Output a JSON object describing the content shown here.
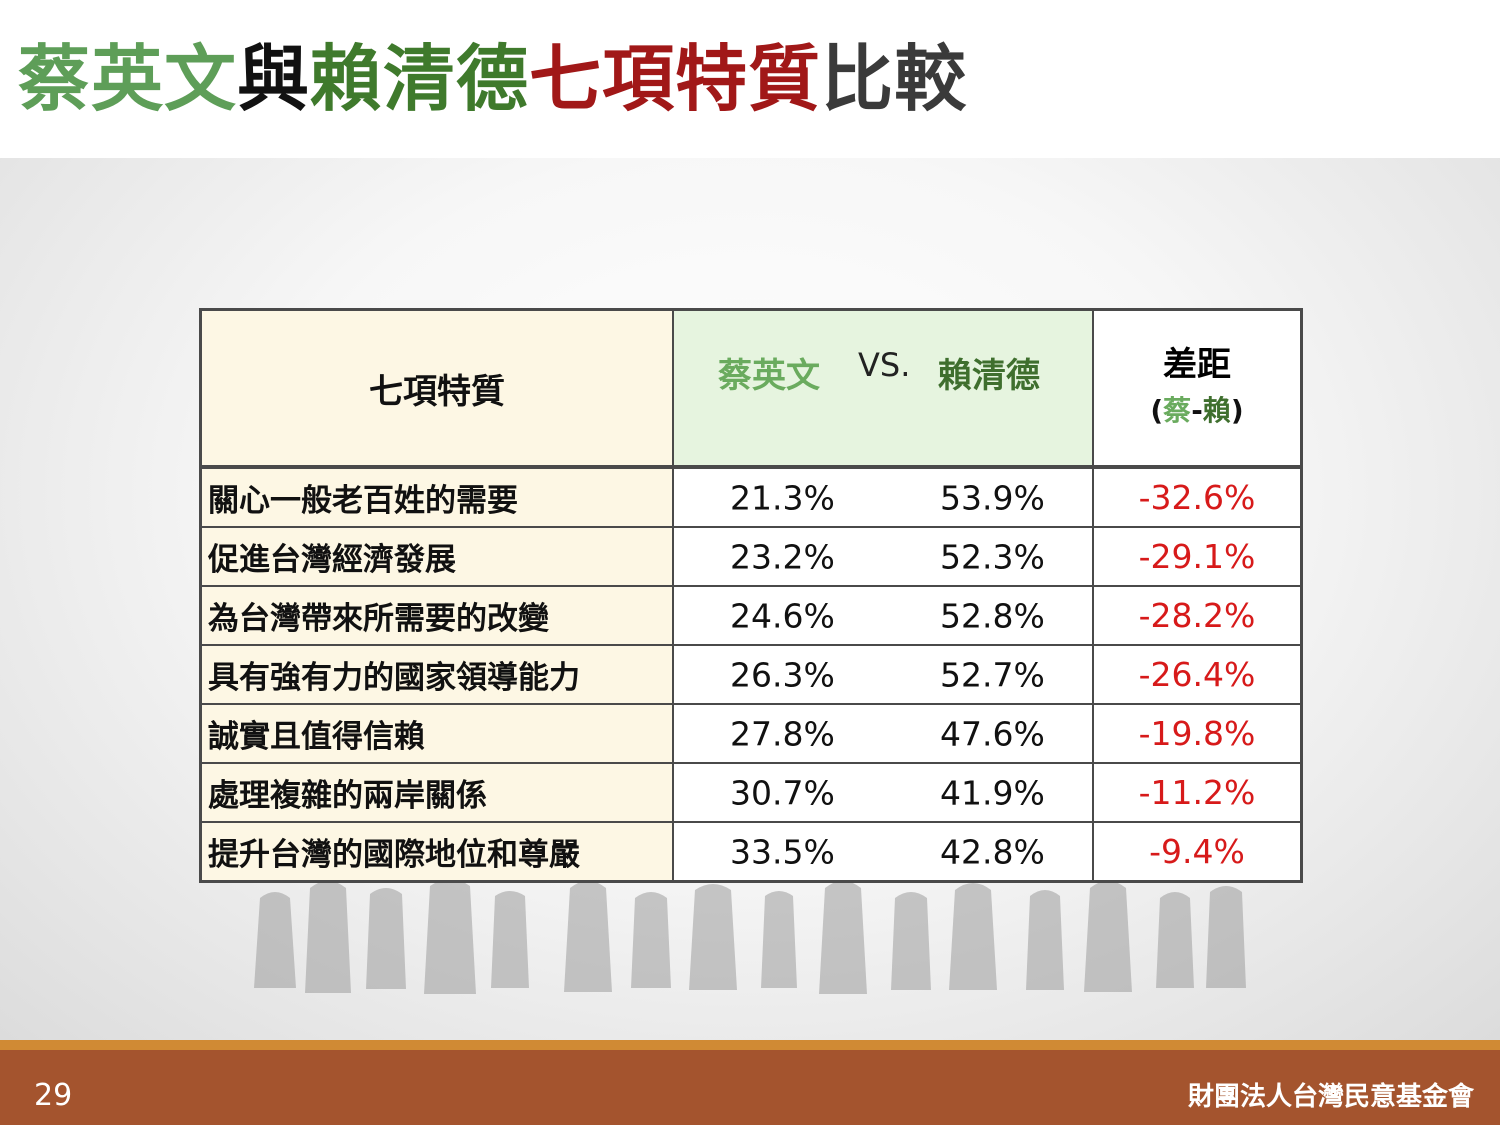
{
  "title": {
    "part1": "蔡英文",
    "part2": "與",
    "part3": "賴清德",
    "part4": "七項特質",
    "part5": "比較",
    "colors": {
      "part1": "#5e9e58",
      "part2": "#111111",
      "part3": "#3f7a2c",
      "part4": "#a11818",
      "part5": "#3a3a3a"
    }
  },
  "table": {
    "header_trait": "七項特質",
    "header_tsai": "蔡英文",
    "header_vs": "VS.",
    "header_lai": "賴清德",
    "header_diff": "差距",
    "header_diff_open": "(",
    "header_diff_tsai": "蔡",
    "header_diff_dash": "-",
    "header_diff_lai": "賴",
    "header_diff_close": ")",
    "rows": [
      {
        "trait": "關心一般老百姓的需要",
        "tsai": "21.3%",
        "lai": "53.9%",
        "diff": "-32.6%"
      },
      {
        "trait": "促進台灣經濟發展",
        "tsai": "23.2%",
        "lai": "52.3%",
        "diff": "-29.1%"
      },
      {
        "trait": "為台灣帶來所需要的改變",
        "tsai": "24.6%",
        "lai": "52.8%",
        "diff": "-28.2%"
      },
      {
        "trait": "具有強有力的國家領導能力",
        "tsai": "26.3%",
        "lai": "52.7%",
        "diff": "-26.4%"
      },
      {
        "trait": "誠實且值得信賴",
        "tsai": "27.8%",
        "lai": "47.6%",
        "diff": "-19.8%"
      },
      {
        "trait": "處理複雜的兩岸關係",
        "tsai": "30.7%",
        "lai": "41.9%",
        "diff": "-11.2%"
      },
      {
        "trait": "提升台灣的國際地位和尊嚴",
        "tsai": "33.5%",
        "lai": "42.8%",
        "diff": "-9.4%"
      }
    ],
    "colors": {
      "trait_bg": "#fdf7e4",
      "names_bg": "#e6f4df",
      "diff_text": "#d71a1a"
    }
  },
  "footer": {
    "page_number": "29",
    "organization": "財團法人台灣民意基金會",
    "colors": {
      "band": "#a4542e",
      "stripe": "#d08a34"
    }
  }
}
